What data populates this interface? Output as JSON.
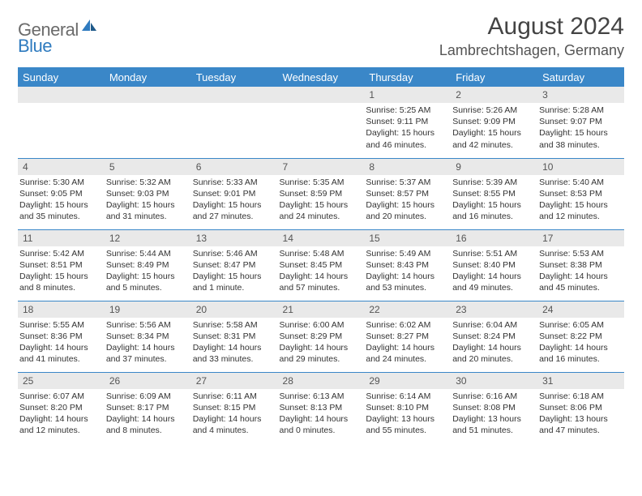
{
  "brand": {
    "part1": "General",
    "part2": "Blue"
  },
  "title": "August 2024",
  "location": "Lambrechtshagen, Germany",
  "colors": {
    "header_bg": "#3a87c8",
    "header_fg": "#ffffff",
    "daynum_bg": "#e9e9e9",
    "border": "#3a87c8",
    "logo_gray": "#6b6b6b",
    "logo_blue": "#2f7bbf",
    "page_bg": "#ffffff"
  },
  "weekdays": [
    "Sunday",
    "Monday",
    "Tuesday",
    "Wednesday",
    "Thursday",
    "Friday",
    "Saturday"
  ],
  "weeks": [
    [
      null,
      null,
      null,
      null,
      {
        "n": "1",
        "sr": "5:25 AM",
        "ss": "9:11 PM",
        "dl": "15 hours and 46 minutes."
      },
      {
        "n": "2",
        "sr": "5:26 AM",
        "ss": "9:09 PM",
        "dl": "15 hours and 42 minutes."
      },
      {
        "n": "3",
        "sr": "5:28 AM",
        "ss": "9:07 PM",
        "dl": "15 hours and 38 minutes."
      }
    ],
    [
      {
        "n": "4",
        "sr": "5:30 AM",
        "ss": "9:05 PM",
        "dl": "15 hours and 35 minutes."
      },
      {
        "n": "5",
        "sr": "5:32 AM",
        "ss": "9:03 PM",
        "dl": "15 hours and 31 minutes."
      },
      {
        "n": "6",
        "sr": "5:33 AM",
        "ss": "9:01 PM",
        "dl": "15 hours and 27 minutes."
      },
      {
        "n": "7",
        "sr": "5:35 AM",
        "ss": "8:59 PM",
        "dl": "15 hours and 24 minutes."
      },
      {
        "n": "8",
        "sr": "5:37 AM",
        "ss": "8:57 PM",
        "dl": "15 hours and 20 minutes."
      },
      {
        "n": "9",
        "sr": "5:39 AM",
        "ss": "8:55 PM",
        "dl": "15 hours and 16 minutes."
      },
      {
        "n": "10",
        "sr": "5:40 AM",
        "ss": "8:53 PM",
        "dl": "15 hours and 12 minutes."
      }
    ],
    [
      {
        "n": "11",
        "sr": "5:42 AM",
        "ss": "8:51 PM",
        "dl": "15 hours and 8 minutes."
      },
      {
        "n": "12",
        "sr": "5:44 AM",
        "ss": "8:49 PM",
        "dl": "15 hours and 5 minutes."
      },
      {
        "n": "13",
        "sr": "5:46 AM",
        "ss": "8:47 PM",
        "dl": "15 hours and 1 minute."
      },
      {
        "n": "14",
        "sr": "5:48 AM",
        "ss": "8:45 PM",
        "dl": "14 hours and 57 minutes."
      },
      {
        "n": "15",
        "sr": "5:49 AM",
        "ss": "8:43 PM",
        "dl": "14 hours and 53 minutes."
      },
      {
        "n": "16",
        "sr": "5:51 AM",
        "ss": "8:40 PM",
        "dl": "14 hours and 49 minutes."
      },
      {
        "n": "17",
        "sr": "5:53 AM",
        "ss": "8:38 PM",
        "dl": "14 hours and 45 minutes."
      }
    ],
    [
      {
        "n": "18",
        "sr": "5:55 AM",
        "ss": "8:36 PM",
        "dl": "14 hours and 41 minutes."
      },
      {
        "n": "19",
        "sr": "5:56 AM",
        "ss": "8:34 PM",
        "dl": "14 hours and 37 minutes."
      },
      {
        "n": "20",
        "sr": "5:58 AM",
        "ss": "8:31 PM",
        "dl": "14 hours and 33 minutes."
      },
      {
        "n": "21",
        "sr": "6:00 AM",
        "ss": "8:29 PM",
        "dl": "14 hours and 29 minutes."
      },
      {
        "n": "22",
        "sr": "6:02 AM",
        "ss": "8:27 PM",
        "dl": "14 hours and 24 minutes."
      },
      {
        "n": "23",
        "sr": "6:04 AM",
        "ss": "8:24 PM",
        "dl": "14 hours and 20 minutes."
      },
      {
        "n": "24",
        "sr": "6:05 AM",
        "ss": "8:22 PM",
        "dl": "14 hours and 16 minutes."
      }
    ],
    [
      {
        "n": "25",
        "sr": "6:07 AM",
        "ss": "8:20 PM",
        "dl": "14 hours and 12 minutes."
      },
      {
        "n": "26",
        "sr": "6:09 AM",
        "ss": "8:17 PM",
        "dl": "14 hours and 8 minutes."
      },
      {
        "n": "27",
        "sr": "6:11 AM",
        "ss": "8:15 PM",
        "dl": "14 hours and 4 minutes."
      },
      {
        "n": "28",
        "sr": "6:13 AM",
        "ss": "8:13 PM",
        "dl": "14 hours and 0 minutes."
      },
      {
        "n": "29",
        "sr": "6:14 AM",
        "ss": "8:10 PM",
        "dl": "13 hours and 55 minutes."
      },
      {
        "n": "30",
        "sr": "6:16 AM",
        "ss": "8:08 PM",
        "dl": "13 hours and 51 minutes."
      },
      {
        "n": "31",
        "sr": "6:18 AM",
        "ss": "8:06 PM",
        "dl": "13 hours and 47 minutes."
      }
    ]
  ],
  "labels": {
    "sunrise": "Sunrise:",
    "sunset": "Sunset:",
    "daylight": "Daylight:"
  }
}
